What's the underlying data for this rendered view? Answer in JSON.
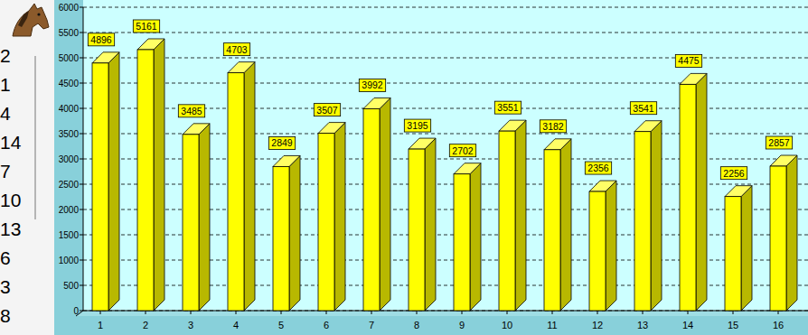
{
  "chart_data": {
    "type": "bar",
    "categories": [
      "1",
      "2",
      "3",
      "4",
      "5",
      "6",
      "7",
      "8",
      "9",
      "10",
      "11",
      "12",
      "13",
      "14",
      "15",
      "16"
    ],
    "values": [
      4896,
      5161,
      3485,
      4703,
      2849,
      3507,
      3992,
      3195,
      2702,
      3551,
      3182,
      2356,
      3541,
      4475,
      2256,
      2857
    ],
    "color": "#ffff00",
    "ylim": [
      0,
      6000
    ],
    "yticks": [
      0,
      500,
      1000,
      1500,
      2000,
      2500,
      3000,
      3500,
      4000,
      4500,
      5000,
      5500,
      6000
    ],
    "grid": true,
    "data_labels": true
  },
  "sidebar": {
    "items": [
      "2",
      "1",
      "4",
      "14",
      "7",
      "10",
      "13",
      "6",
      "3",
      "8"
    ]
  }
}
